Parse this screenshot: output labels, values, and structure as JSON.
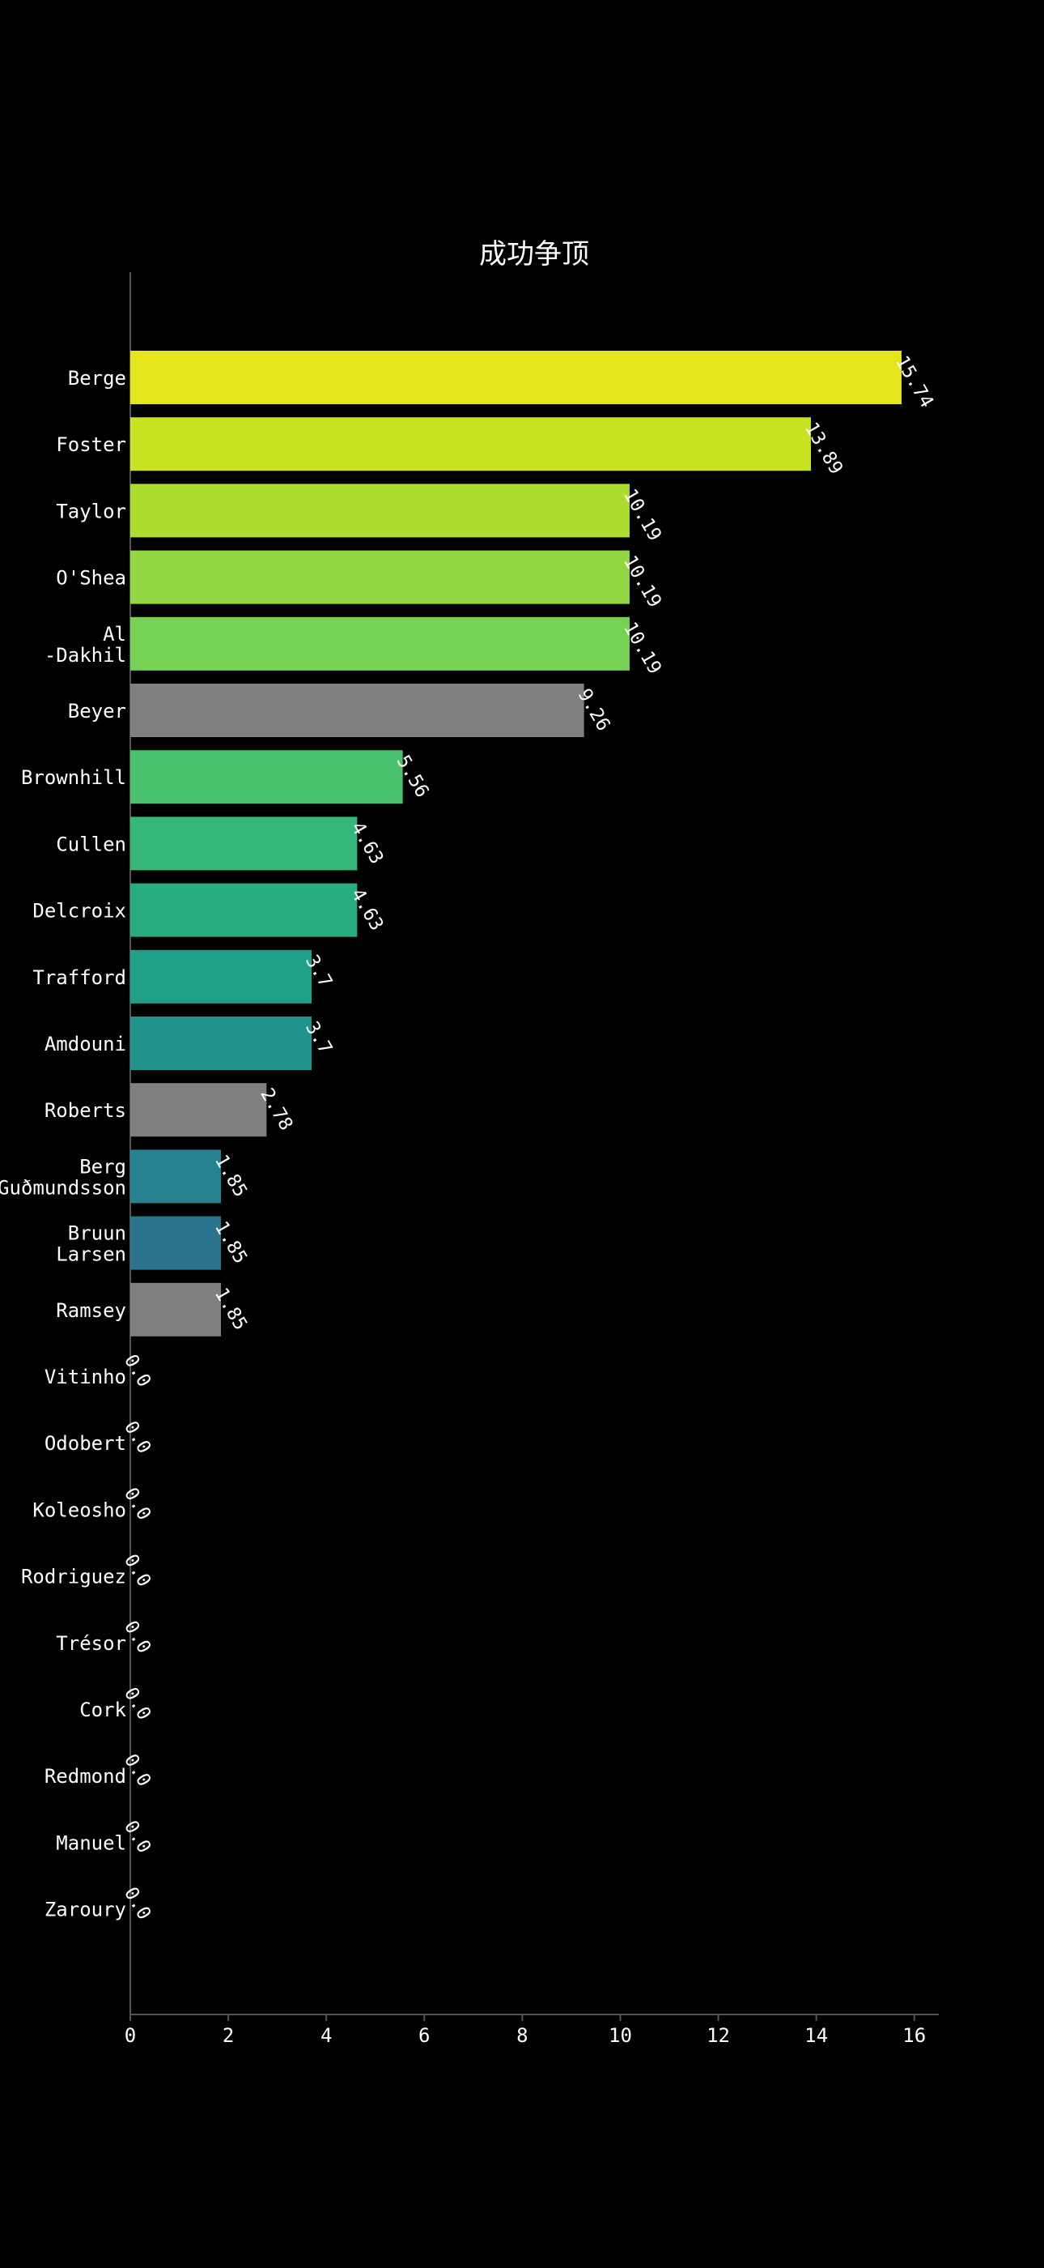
{
  "chart_data": {
    "type": "bar",
    "orientation": "horizontal",
    "title": "成功争顶",
    "xlabel": "",
    "ylabel": "",
    "xlim": [
      0,
      16.5
    ],
    "xticks": [
      0,
      2,
      4,
      6,
      8,
      10,
      12,
      14,
      16
    ],
    "grid": false,
    "legend": "none",
    "categories": [
      "Berge",
      "Foster",
      "Taylor",
      "O'Shea",
      "Al\n-Dakhil",
      "Beyer",
      "Brownhill",
      "Cullen",
      "Delcroix",
      "Trafford",
      "Amdouni",
      "Roberts",
      "Berg\nGuðmundsson",
      "Bruun\nLarsen",
      "Ramsey",
      "Vitinho",
      "Odobert",
      "Koleosho",
      "Rodriguez",
      "Trésor",
      "Cork",
      "Redmond",
      "Manuel",
      "Zaroury"
    ],
    "values": [
      15.74,
      13.89,
      10.19,
      10.19,
      10.19,
      9.26,
      5.56,
      4.63,
      4.63,
      3.7,
      3.7,
      2.78,
      1.85,
      1.85,
      1.85,
      0.0,
      0.0,
      0.0,
      0.0,
      0.0,
      0.0,
      0.0,
      0.0,
      0.0
    ],
    "value_labels": [
      "15.74",
      "13.89",
      "10.19",
      "10.19",
      "10.19",
      "9.26",
      "5.56",
      "4.63",
      "4.63",
      "3.7",
      "3.7",
      "2.78",
      "1.85",
      "1.85",
      "1.85",
      "0.0",
      "0.0",
      "0.0",
      "0.0",
      "0.0",
      "0.0",
      "0.0",
      "0.0",
      "0.0"
    ],
    "colors": [
      "#e4e51b",
      "#c9e322",
      "#acdc30",
      "#92d742",
      "#77d153",
      "#808080",
      "#4ac16d",
      "#35b779",
      "#27ad81",
      "#1fa188",
      "#20938c",
      "#808080",
      "#26828e",
      "#2b748e",
      "#808080",
      "#808080",
      "#808080",
      "#808080",
      "#808080",
      "#808080",
      "#808080",
      "#808080",
      "#808080",
      "#808080"
    ]
  },
  "style": {
    "background": "#000000",
    "text_color": "#ffffff",
    "axis_color": "#555555"
  }
}
